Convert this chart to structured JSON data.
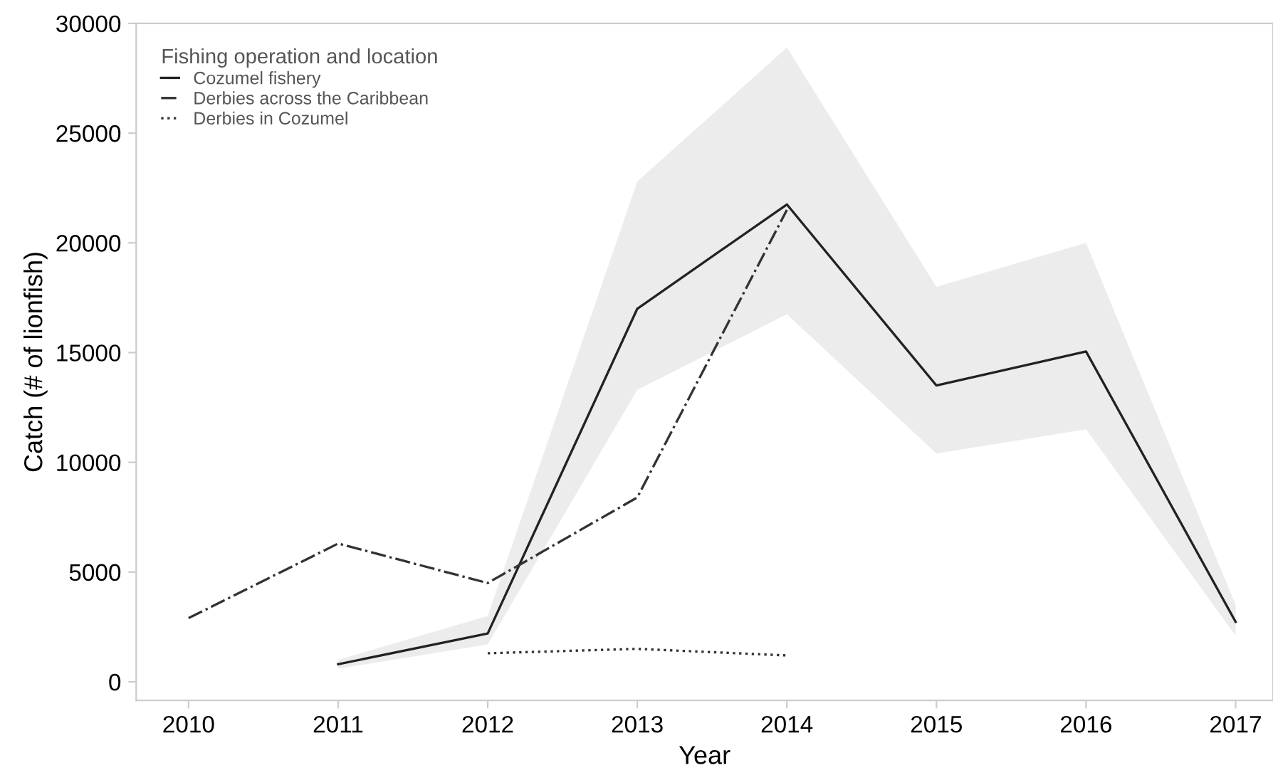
{
  "chart_data": {
    "type": "line",
    "xlabel": "Year",
    "ylabel": "Catch (# of lionfish)",
    "legend_title": "Fishing operation and location",
    "legend": "top left",
    "grid": false,
    "xlim": [
      2009.65,
      2017.25
    ],
    "xticks": [
      2010,
      2011,
      2012,
      2013,
      2014,
      2015,
      2016,
      2017
    ],
    "ylim": [
      -850,
      30000
    ],
    "yticks": [
      0,
      5000,
      10000,
      15000,
      20000,
      25000,
      30000
    ],
    "series": [
      {
        "name": "Cozumel fishery",
        "color": "#222222",
        "line_style": "solid",
        "x": [
          2011,
          2012,
          2013,
          2014,
          2015,
          2016,
          2017
        ],
        "values": [
          800,
          2200,
          17000,
          21750,
          13500,
          15050,
          2730
        ],
        "lower": [
          600,
          1700,
          13300,
          16750,
          10400,
          11500,
          2100
        ],
        "upper": [
          1000,
          3000,
          22800,
          28900,
          18000,
          20000,
          3500
        ]
      },
      {
        "name": "Derbies across the Caribbean",
        "color": "#333333",
        "line_style": "dashdot",
        "x": [
          2010,
          2011,
          2012,
          2013,
          2014
        ],
        "values": [
          2900,
          6300,
          4500,
          8400,
          21500
        ]
      },
      {
        "name": "Derbies in Cozumel",
        "color": "#333333",
        "line_style": "dotted",
        "x": [
          2012,
          2013,
          2014
        ],
        "values": [
          1300,
          1500,
          1200
        ]
      }
    ]
  }
}
